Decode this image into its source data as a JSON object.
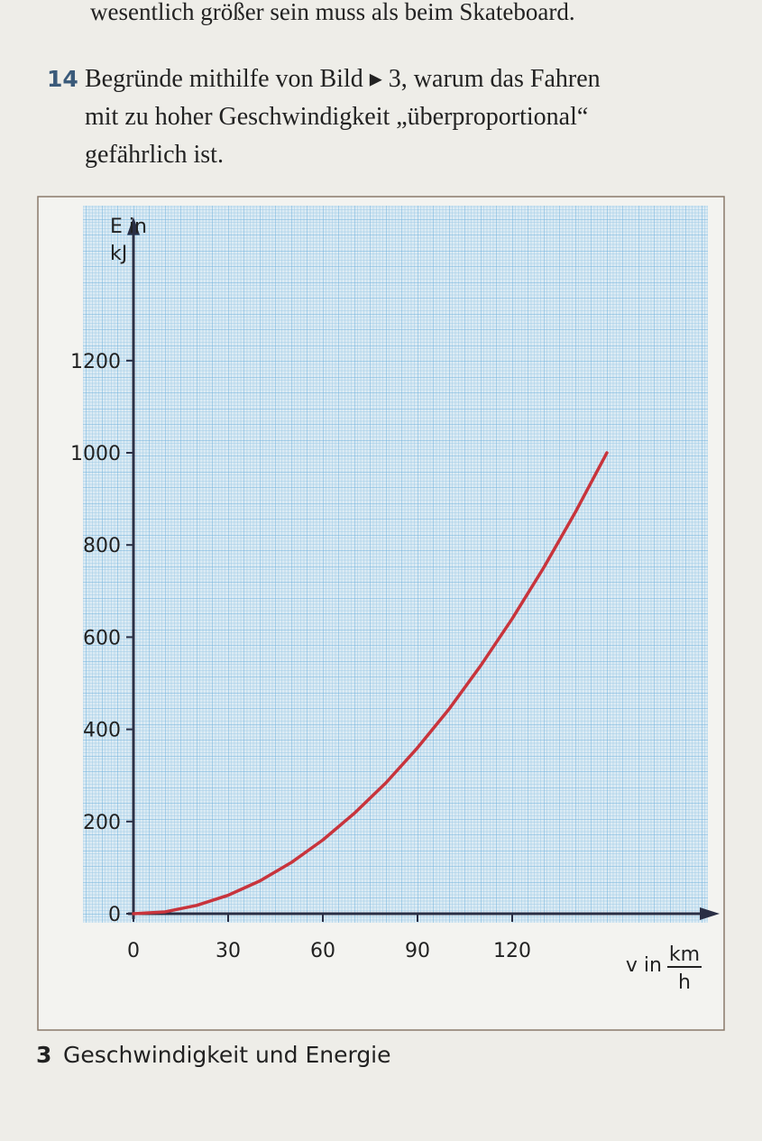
{
  "top_line": "wesentlich größer sein muss als beim Skateboard.",
  "task": {
    "number": "14",
    "lines": [
      "Begründe mithilfe von Bild ▸ 3, warum das Fahren",
      "mit zu hoher Geschwindigkeit „überproportional“",
      "gefährlich ist."
    ]
  },
  "caption": {
    "number": "3",
    "text": "Geschwindigkeit und Energie"
  },
  "chart_data": {
    "type": "line",
    "ylabel": [
      "E in",
      "kJ"
    ],
    "xlabel": "v in",
    "xunit": [
      "km",
      "h"
    ],
    "x": [
      0,
      10,
      20,
      30,
      40,
      50,
      60,
      70,
      80,
      90,
      100,
      110,
      120,
      130,
      140,
      150
    ],
    "series": [
      {
        "color": "#c8343c",
        "values": [
          0,
          4,
          18,
          40,
          71,
          111,
          160,
          218,
          284,
          360,
          444,
          538,
          640,
          751,
          871,
          1000
        ]
      }
    ],
    "xlim": [
      0,
      180
    ],
    "xticks": [
      0,
      30,
      60,
      90,
      120
    ],
    "ylim": [
      0,
      1500
    ],
    "yticks": [
      0,
      200,
      400,
      600,
      800,
      1000,
      1200
    ],
    "grid": true
  }
}
